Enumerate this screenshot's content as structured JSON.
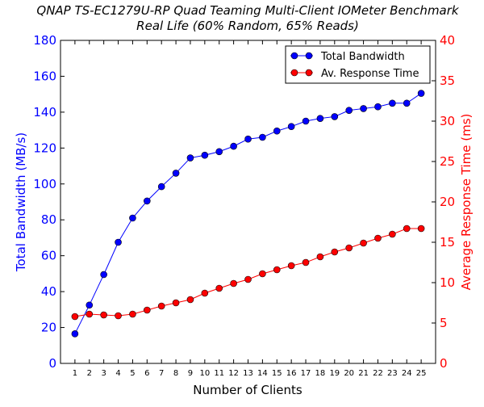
{
  "chart_data": {
    "type": "line",
    "title": "QNAP TS-EC1279U-RP Quad Teaming Multi-Client IOMeter Benchmark",
    "subtitle": "Real Life (60% Random, 65% Reads)",
    "xlabel": "Number of Clients",
    "ylabel_left": "Total Bandwidth (MB/s)",
    "ylabel_right": "Average Response Time (ms)",
    "x": [
      1,
      2,
      3,
      4,
      5,
      6,
      7,
      8,
      9,
      10,
      11,
      12,
      13,
      14,
      15,
      16,
      17,
      18,
      19,
      20,
      21,
      22,
      23,
      24,
      25
    ],
    "xlim": [
      0,
      26
    ],
    "ylim_left": [
      0,
      180
    ],
    "ylim_right": [
      0,
      40
    ],
    "yticks_left": [
      0,
      20,
      40,
      60,
      80,
      100,
      120,
      140,
      160,
      180
    ],
    "yticks_right": [
      0,
      5,
      10,
      15,
      20,
      25,
      30,
      35,
      40
    ],
    "grid": false,
    "legend_position": "top-right",
    "series": [
      {
        "name": "Total Bandwidth",
        "axis": "left",
        "color": "#0000ff",
        "values": [
          16.5,
          32.5,
          49.5,
          67.5,
          81,
          90.5,
          98.5,
          106,
          114.5,
          116,
          118,
          121,
          125,
          126,
          129.5,
          132,
          135,
          136.5,
          137.5,
          141,
          142,
          143,
          145,
          145,
          150.5
        ]
      },
      {
        "name": "Av. Response Time",
        "axis": "right",
        "color": "#ff0000",
        "values": [
          5.8,
          6.1,
          6.0,
          5.9,
          6.1,
          6.6,
          7.1,
          7.5,
          7.9,
          8.7,
          9.3,
          9.9,
          10.4,
          11.1,
          11.6,
          12.1,
          12.5,
          13.2,
          13.8,
          14.3,
          14.9,
          15.5,
          16.0,
          16.7,
          16.7
        ]
      }
    ],
    "colors": {
      "left_axis": "#0000ff",
      "right_axis": "#ff0000",
      "axes": "#000000"
    }
  }
}
